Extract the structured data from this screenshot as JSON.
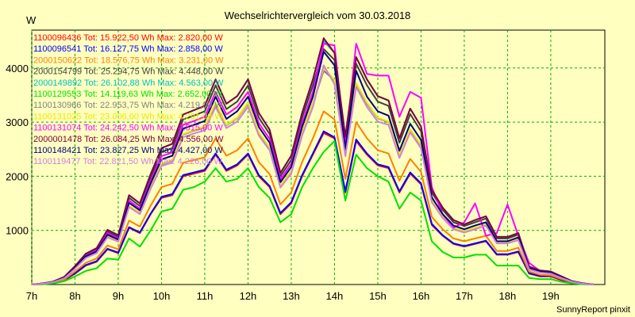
{
  "chart_data": {
    "type": "line",
    "title": "Wechselrichtervergleich vom 30.03.2018",
    "ylabel": "W",
    "footer": "SunnyReport pinxit",
    "ylim": [
      0,
      4700
    ],
    "yticks": [
      1000,
      2000,
      3000,
      4000
    ],
    "xlim": [
      7,
      20.25
    ],
    "xticks": [
      {
        "value": 7,
        "label": "7h"
      },
      {
        "value": 8,
        "label": "8h"
      },
      {
        "value": 9,
        "label": "9h"
      },
      {
        "value": 10,
        "label": "10h"
      },
      {
        "value": 11,
        "label": "11h"
      },
      {
        "value": 12,
        "label": "12h"
      },
      {
        "value": 13,
        "label": "13h"
      },
      {
        "value": 14,
        "label": "14h"
      },
      {
        "value": 15,
        "label": "15h"
      },
      {
        "value": 16,
        "label": "16h"
      },
      {
        "value": 17,
        "label": "17h"
      },
      {
        "value": 18,
        "label": "18h"
      },
      {
        "value": 19,
        "label": "19h"
      }
    ],
    "grid": true,
    "legend_position": "top-left",
    "x": [
      7.0,
      7.25,
      7.5,
      7.75,
      8.0,
      8.25,
      8.5,
      8.75,
      9.0,
      9.25,
      9.5,
      9.75,
      10.0,
      10.25,
      10.5,
      10.75,
      11.0,
      11.25,
      11.5,
      11.75,
      12.0,
      12.25,
      12.5,
      12.75,
      13.0,
      13.25,
      13.5,
      13.75,
      14.0,
      14.25,
      14.5,
      14.75,
      15.0,
      15.25,
      15.5,
      15.75,
      16.0,
      16.25,
      16.5,
      16.75,
      17.0,
      17.25,
      17.5,
      17.75,
      18.0,
      18.25,
      18.5,
      18.75,
      19.0,
      19.25,
      19.5,
      19.75,
      20.0
    ],
    "series": [
      {
        "name": "1100096436",
        "total": "15.922,50 Wh",
        "max": "2.820,00 W",
        "color": "#ff0000",
        "values": [
          0,
          10,
          30,
          80,
          200,
          350,
          420,
          650,
          580,
          1050,
          950,
          1300,
          1600,
          1650,
          2000,
          2050,
          2100,
          2400,
          2100,
          2200,
          2400,
          2000,
          1800,
          1300,
          1500,
          2000,
          2400,
          2800,
          2700,
          1700,
          2650,
          2400,
          2200,
          2150,
          1700,
          2050,
          1850,
          1100,
          900,
          750,
          700,
          750,
          800,
          550,
          550,
          600,
          200,
          150,
          150,
          80,
          30,
          10,
          0
        ]
      },
      {
        "name": "1100096541",
        "total": "16.127,75 Wh",
        "max": "2.858,00 W",
        "color": "#0000ff",
        "values": [
          0,
          10,
          30,
          80,
          210,
          360,
          430,
          660,
          590,
          1060,
          960,
          1310,
          1620,
          1670,
          2020,
          2070,
          2120,
          2420,
          2120,
          2220,
          2420,
          2020,
          1820,
          1320,
          1520,
          2020,
          2420,
          2830,
          2720,
          1720,
          2680,
          2420,
          2220,
          2170,
          1720,
          2070,
          1870,
          1120,
          910,
          760,
          710,
          760,
          810,
          560,
          560,
          610,
          210,
          160,
          160,
          90,
          35,
          10,
          0
        ]
      },
      {
        "name": "2000150622",
        "total": "18.576,75 Wh",
        "max": "3.231,00 W",
        "color": "#ff8000",
        "values": [
          0,
          10,
          35,
          90,
          240,
          400,
          480,
          720,
          650,
          1180,
          1070,
          1460,
          1800,
          1860,
          2250,
          2300,
          2350,
          2700,
          2380,
          2480,
          2700,
          2260,
          2040,
          1480,
          1700,
          2260,
          2700,
          3200,
          3050,
          1950,
          3000,
          2700,
          2480,
          2420,
          1920,
          2320,
          2080,
          1250,
          1020,
          850,
          800,
          850,
          900,
          620,
          620,
          680,
          240,
          180,
          170,
          100,
          40,
          15,
          0
        ]
      },
      {
        "name": "2000154799",
        "total": "25.294,75 Wh",
        "max": "4.448,00 W",
        "color": "#404040",
        "values": [
          0,
          20,
          50,
          130,
          330,
          550,
          650,
          980,
          880,
          1600,
          1450,
          1980,
          2450,
          2520,
          3050,
          3120,
          3200,
          3680,
          3240,
          3380,
          3680,
          3080,
          2780,
          2000,
          2300,
          3080,
          3680,
          4350,
          4150,
          2650,
          4080,
          3680,
          3380,
          3300,
          2620,
          3150,
          2830,
          1700,
          1380,
          1150,
          1080,
          1150,
          1220,
          850,
          850,
          920,
          320,
          250,
          230,
          140,
          60,
          20,
          0
        ]
      },
      {
        "name": "2000149892",
        "total": "26.102,88 Wh",
        "max": "4.563,00 W",
        "color": "#00c0c0",
        "values": [
          0,
          20,
          55,
          140,
          340,
          570,
          670,
          1010,
          910,
          1650,
          1500,
          2040,
          2520,
          2600,
          3140,
          3220,
          3300,
          3790,
          3340,
          3480,
          3790,
          3170,
          2860,
          2060,
          2380,
          3170,
          3790,
          4500,
          4280,
          2730,
          4200,
          3790,
          3480,
          3400,
          2700,
          3250,
          2920,
          1750,
          1420,
          1190,
          1110,
          1190,
          1260,
          880,
          880,
          950,
          330,
          260,
          240,
          150,
          60,
          20,
          0
        ]
      },
      {
        "name": "1100129553",
        "total": "14.119,63 Wh",
        "max": "2.652,00 W",
        "color": "#00e000",
        "values": [
          0,
          5,
          20,
          60,
          150,
          250,
          300,
          480,
          460,
          850,
          700,
          1000,
          1350,
          1400,
          1750,
          1800,
          1900,
          2150,
          1900,
          1950,
          2150,
          1800,
          1600,
          1150,
          1300,
          1800,
          2150,
          2450,
          2650,
          1550,
          2400,
          2150,
          2000,
          1900,
          1400,
          1700,
          1550,
          800,
          600,
          500,
          500,
          550,
          550,
          350,
          350,
          350,
          120,
          100,
          100,
          50,
          20,
          5,
          0
        ]
      },
      {
        "name": "1100130966",
        "total": "22.953,75 Wh",
        "max": "4.219,00 W",
        "color": "#808080",
        "values": [
          0,
          15,
          45,
          120,
          300,
          500,
          590,
          890,
          800,
          1450,
          1320,
          1800,
          2220,
          2290,
          2770,
          2840,
          2900,
          3340,
          2940,
          3070,
          3340,
          2800,
          2520,
          1820,
          2090,
          2800,
          3340,
          3950,
          3770,
          2410,
          3710,
          3340,
          3070,
          3000,
          2380,
          2860,
          2570,
          1550,
          1250,
          1040,
          980,
          1040,
          1110,
          770,
          770,
          840,
          290,
          230,
          210,
          130,
          55,
          20,
          0
        ]
      },
      {
        "name": "1100131025",
        "total": "23.006,00 Wh",
        "max": "4.291,00 W",
        "color": "#e8e800",
        "values": [
          0,
          15,
          45,
          120,
          300,
          500,
          590,
          890,
          800,
          1450,
          1330,
          1810,
          2230,
          2300,
          2780,
          2850,
          2920,
          3360,
          2950,
          3080,
          3360,
          2810,
          2530,
          1830,
          2100,
          2810,
          3360,
          4000,
          3780,
          2420,
          3720,
          3360,
          3080,
          3010,
          2390,
          2870,
          2580,
          1550,
          1260,
          1050,
          990,
          1050,
          1110,
          780,
          780,
          840,
          290,
          230,
          210,
          130,
          55,
          20,
          0
        ]
      },
      {
        "name": "1100131074",
        "total": "24.242,50 Wh",
        "max": "4.515,00 W",
        "color": "#ff00ff",
        "values": [
          0,
          20,
          50,
          130,
          320,
          530,
          630,
          950,
          850,
          1550,
          1400,
          1920,
          2370,
          2440,
          2950,
          3020,
          3100,
          3560,
          3140,
          3280,
          3560,
          2980,
          2690,
          1940,
          2230,
          2980,
          3560,
          4450,
          4420,
          2560,
          4450,
          3890,
          3860,
          3860,
          3100,
          3560,
          3450,
          1800,
          1300,
          1050,
          1150,
          1500,
          900,
          950,
          1480,
          900,
          400,
          250,
          230,
          140,
          60,
          20,
          0
        ]
      },
      {
        "name": "2000001478",
        "total": "26.084,25 Wh",
        "max": "4.556,00 W",
        "color": "#800040",
        "values": [
          0,
          20,
          55,
          140,
          340,
          570,
          670,
          1010,
          910,
          1650,
          1500,
          2040,
          2520,
          2600,
          3140,
          3220,
          3300,
          3790,
          3340,
          3480,
          3790,
          3170,
          2860,
          2060,
          2380,
          3170,
          3790,
          4550,
          4280,
          2730,
          4200,
          3790,
          3480,
          3400,
          2700,
          3250,
          2920,
          1750,
          1420,
          1190,
          1110,
          1190,
          1260,
          880,
          880,
          950,
          330,
          260,
          240,
          150,
          60,
          20,
          0
        ]
      },
      {
        "name": "1100148421",
        "total": "23.827,25 Wh",
        "max": "4.427,00 W",
        "color": "#000080",
        "values": [
          0,
          15,
          50,
          125,
          310,
          520,
          610,
          920,
          830,
          1510,
          1370,
          1870,
          2310,
          2380,
          2880,
          2950,
          3020,
          3470,
          3060,
          3200,
          3470,
          2910,
          2620,
          1890,
          2170,
          2910,
          3470,
          4300,
          4050,
          2500,
          3950,
          3470,
          3200,
          3120,
          2470,
          2970,
          2670,
          1610,
          1300,
          1090,
          1020,
          1090,
          1150,
          800,
          800,
          870,
          300,
          240,
          220,
          130,
          55,
          20,
          0
        ]
      },
      {
        "name": "1100119477",
        "total": "22.821,50 Wh",
        "max": "4.226,00 W",
        "color": "#d080e0",
        "values": [
          0,
          15,
          45,
          115,
          290,
          490,
          580,
          870,
          790,
          1430,
          1300,
          1770,
          2190,
          2250,
          2720,
          2790,
          2850,
          3280,
          2890,
          3010,
          3280,
          2750,
          2480,
          1790,
          2050,
          2750,
          3280,
          4050,
          3700,
          2370,
          3650,
          3280,
          3010,
          2950,
          2340,
          2810,
          2520,
          1520,
          1230,
          1020,
          960,
          1020,
          1090,
          760,
          760,
          820,
          280,
          220,
          200,
          120,
          50,
          15,
          0
        ]
      }
    ]
  }
}
